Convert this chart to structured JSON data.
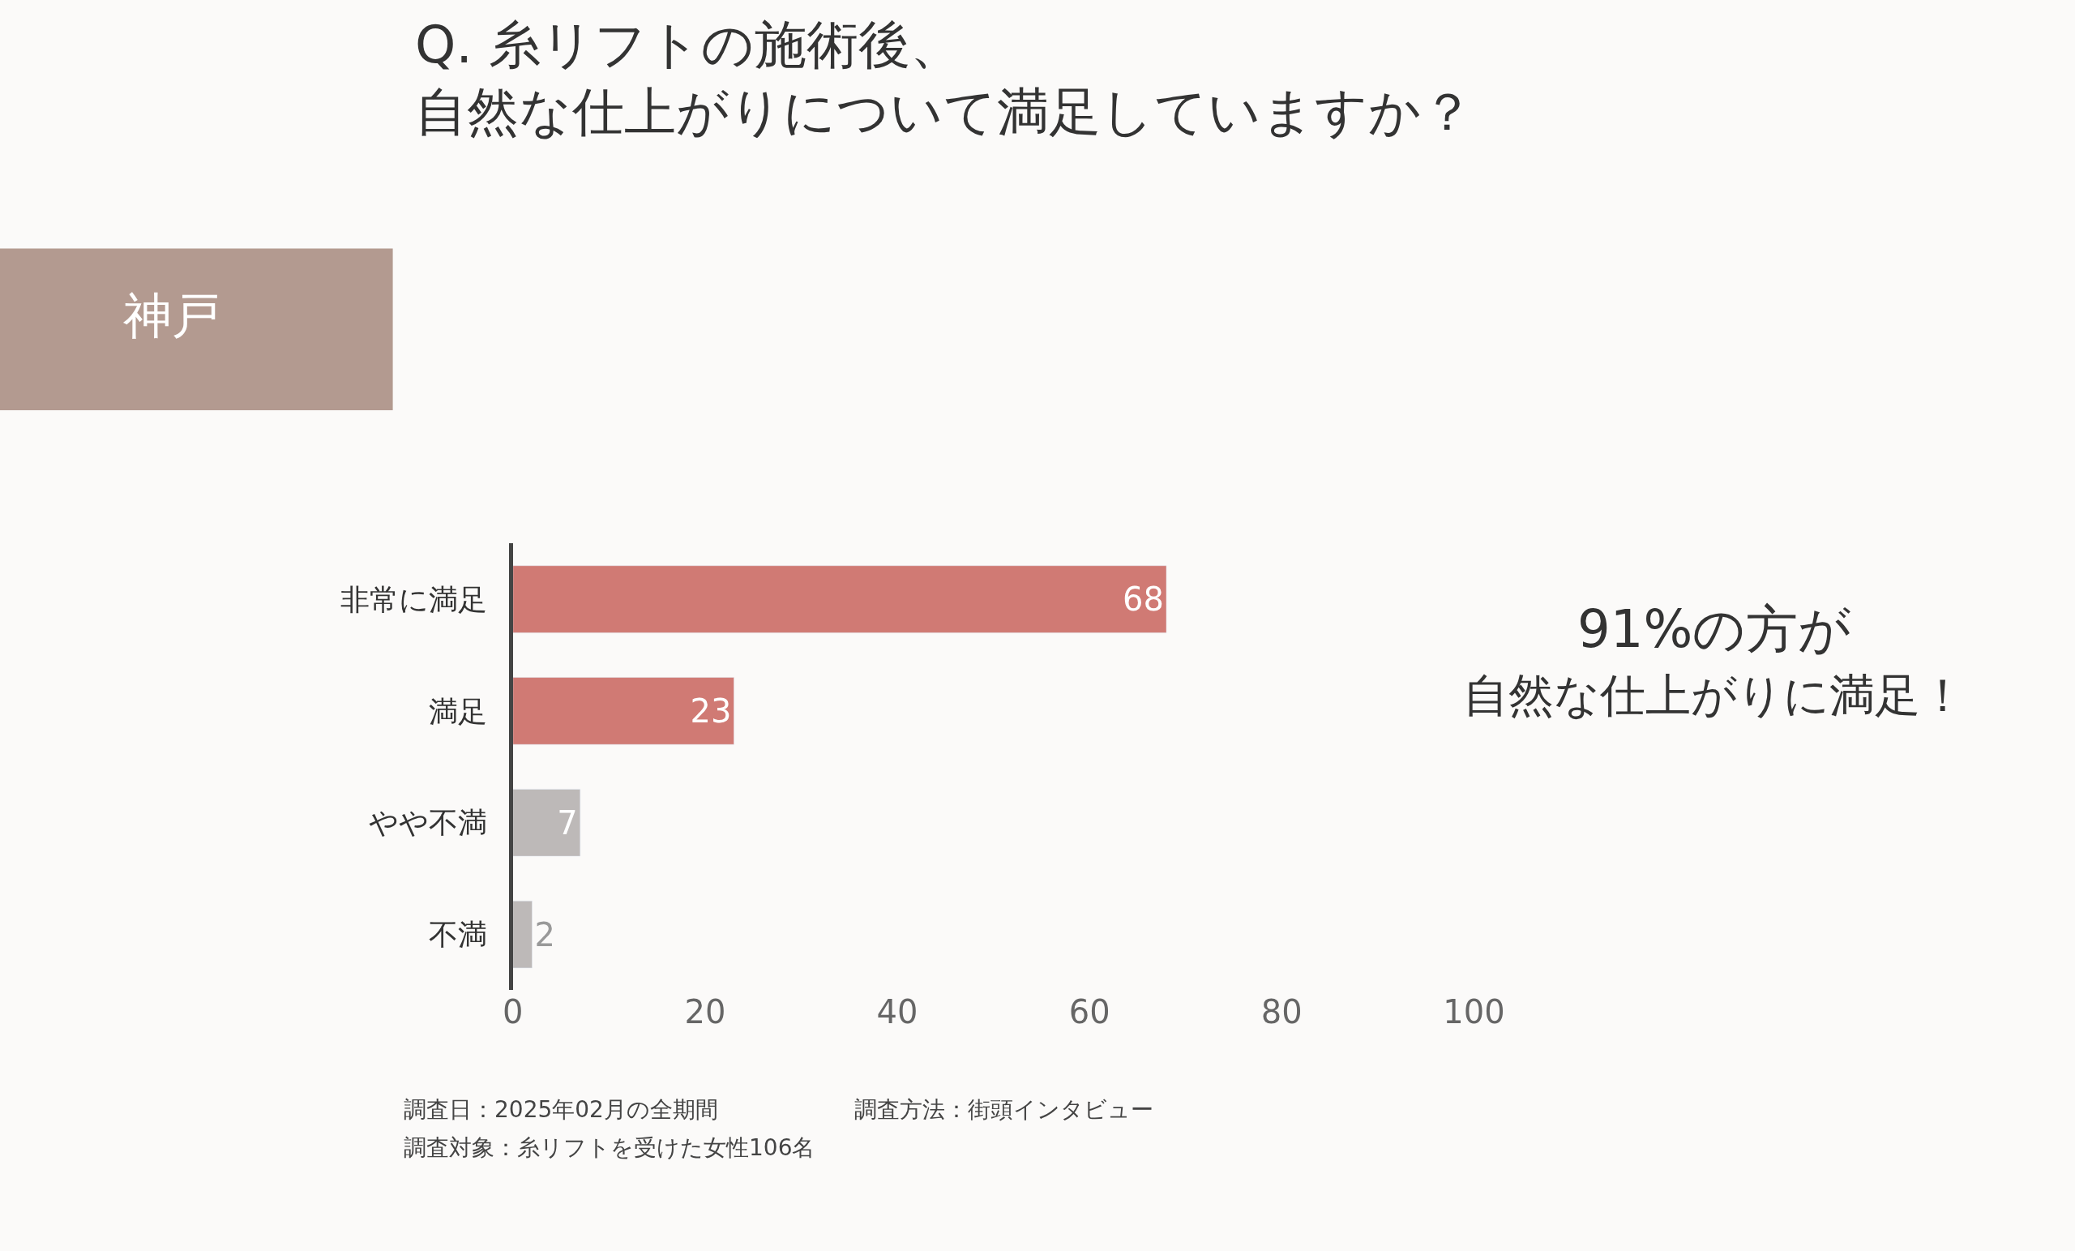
{
  "chart_data": {
    "type": "bar",
    "orientation": "horizontal",
    "title": "Q. 糸リフトの施術後、",
    "subtitle": "自然な仕上がりについて満足していますか？",
    "categories": [
      "非常に満足",
      "満足",
      "やや不満",
      "不満"
    ],
    "values": [
      68,
      23,
      7,
      2
    ],
    "colors": [
      "#d07a74",
      "#d07a74",
      "#bdb9b8",
      "#bdb9b8"
    ],
    "xlim": [
      0,
      100
    ],
    "xticks": [
      0,
      20,
      40,
      60,
      80,
      100
    ],
    "grid": false,
    "data_labels": true,
    "annotations": [
      "神戸",
      "91%の方が",
      "自然な仕上がりに満足！",
      "調査日：2025年02月の全期間",
      "調査方法：街頭インタビュー",
      "調査対象：糸リフトを受けた女性106名"
    ]
  }
}
